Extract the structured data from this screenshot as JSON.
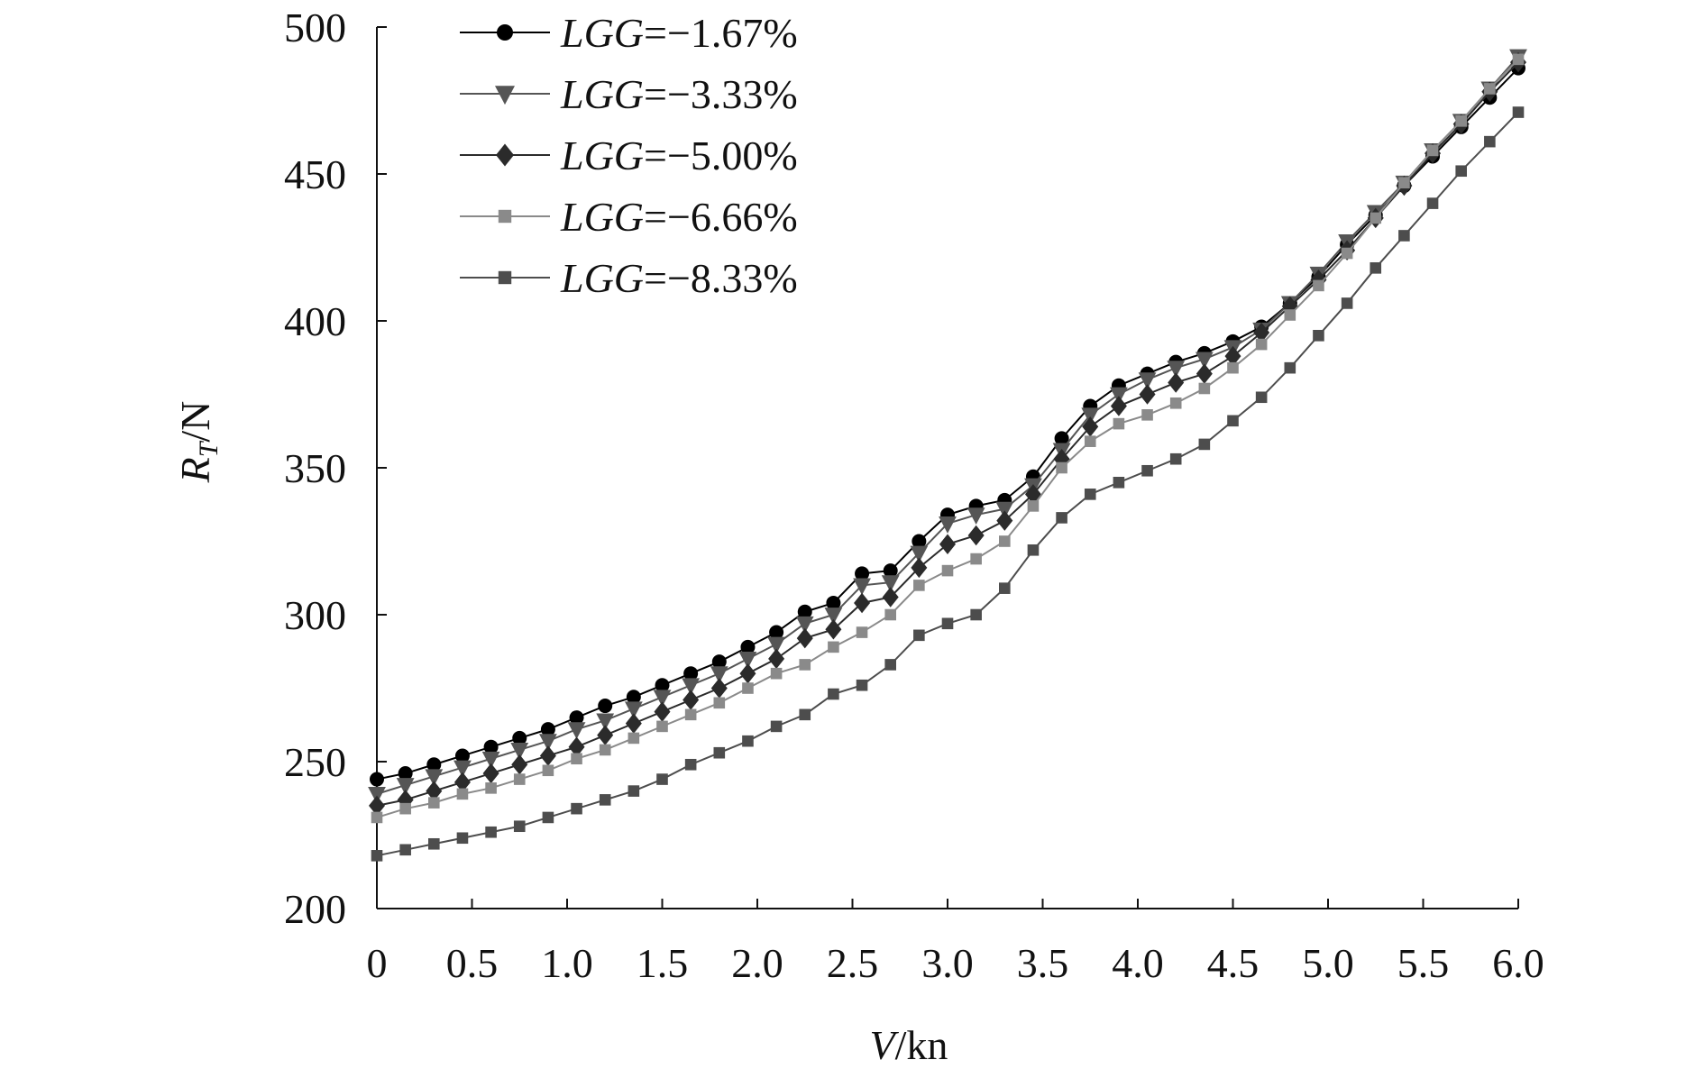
{
  "chart_data": {
    "type": "line",
    "title": "",
    "xlabel": {
      "var": "V",
      "unit": "/kn"
    },
    "ylabel": {
      "var": "R",
      "sub": "T",
      "unit": "/N"
    },
    "xlim": [
      0,
      6.0
    ],
    "ylim": [
      200,
      500
    ],
    "x_ticks": [
      0,
      0.5,
      1.0,
      1.5,
      2.0,
      2.5,
      3.0,
      3.5,
      4.0,
      4.5,
      5.0,
      5.5,
      6.0
    ],
    "x_tick_labels": [
      "0",
      "0.5",
      "1.0",
      "1.5",
      "2.0",
      "2.5",
      "3.0",
      "3.5",
      "4.0",
      "4.5",
      "5.0",
      "5.5",
      "6.0"
    ],
    "y_ticks": [
      200,
      250,
      300,
      350,
      400,
      450,
      500
    ],
    "y_tick_labels": [
      "200",
      "250",
      "300",
      "350",
      "400",
      "450",
      "500"
    ],
    "grid": false,
    "legend_position": "top-left",
    "x": [
      0,
      0.15,
      0.3,
      0.45,
      0.6,
      0.75,
      0.9,
      1.05,
      1.2,
      1.35,
      1.5,
      1.65,
      1.8,
      1.95,
      2.1,
      2.25,
      2.4,
      2.55,
      2.7,
      2.85,
      3.0,
      3.15,
      3.3,
      3.45,
      3.6,
      3.75,
      3.9,
      4.05,
      4.2,
      4.35,
      4.5,
      4.65,
      4.8,
      4.95,
      5.1,
      5.25,
      5.4,
      5.55,
      5.7,
      5.85,
      6.0
    ],
    "series": [
      {
        "legend_prefix": "LGG",
        "legend_value": "=−1.67%",
        "marker": "circle",
        "color": "#000000",
        "values": [
          244,
          246,
          249,
          252,
          255,
          258,
          261,
          265,
          269,
          272,
          276,
          280,
          284,
          289,
          294,
          301,
          304,
          314,
          315,
          325,
          334,
          337,
          339,
          347,
          360,
          371,
          378,
          382,
          386,
          389,
          393,
          398,
          406,
          415,
          426,
          436,
          446,
          456,
          466,
          476,
          486
        ]
      },
      {
        "legend_prefix": "LGG",
        "legend_value": "=−3.33%",
        "marker": "triangle-down",
        "color": "#555555",
        "values": [
          239,
          242,
          245,
          248,
          251,
          254,
          257,
          261,
          264,
          268,
          272,
          276,
          280,
          285,
          290,
          297,
          300,
          310,
          311,
          321,
          331,
          334,
          336,
          344,
          356,
          368,
          375,
          380,
          384,
          387,
          391,
          397,
          406,
          416,
          427,
          437,
          447,
          458,
          468,
          479,
          490
        ]
      },
      {
        "legend_prefix": "LGG",
        "legend_value": "=−5.00%",
        "marker": "diamond",
        "color": "#2b2b2b",
        "values": [
          235,
          237,
          240,
          243,
          246,
          249,
          252,
          255,
          259,
          263,
          267,
          271,
          275,
          280,
          285,
          292,
          295,
          304,
          306,
          316,
          324,
          327,
          332,
          341,
          353,
          364,
          371,
          375,
          379,
          382,
          388,
          396,
          405,
          414,
          424,
          435,
          446,
          457,
          467,
          478,
          488
        ]
      },
      {
        "legend_prefix": "LGG",
        "legend_value": "=−6.66%",
        "marker": "square",
        "color": "#8a8a8a",
        "values": [
          231,
          234,
          236,
          239,
          241,
          244,
          247,
          251,
          254,
          258,
          262,
          266,
          270,
          275,
          280,
          283,
          289,
          294,
          300,
          310,
          315,
          319,
          325,
          337,
          350,
          359,
          365,
          368,
          372,
          377,
          384,
          392,
          402,
          412,
          423,
          435,
          447,
          458,
          468,
          479,
          489
        ]
      },
      {
        "legend_prefix": "LGG",
        "legend_value": "=−8.33%",
        "marker": "square",
        "color": "#4d4d4d",
        "values": [
          218,
          220,
          222,
          224,
          226,
          228,
          231,
          234,
          237,
          240,
          244,
          249,
          253,
          257,
          262,
          266,
          273,
          276,
          283,
          293,
          297,
          300,
          309,
          322,
          333,
          341,
          345,
          349,
          353,
          358,
          366,
          374,
          384,
          395,
          406,
          418,
          429,
          440,
          451,
          461,
          471
        ]
      }
    ]
  }
}
